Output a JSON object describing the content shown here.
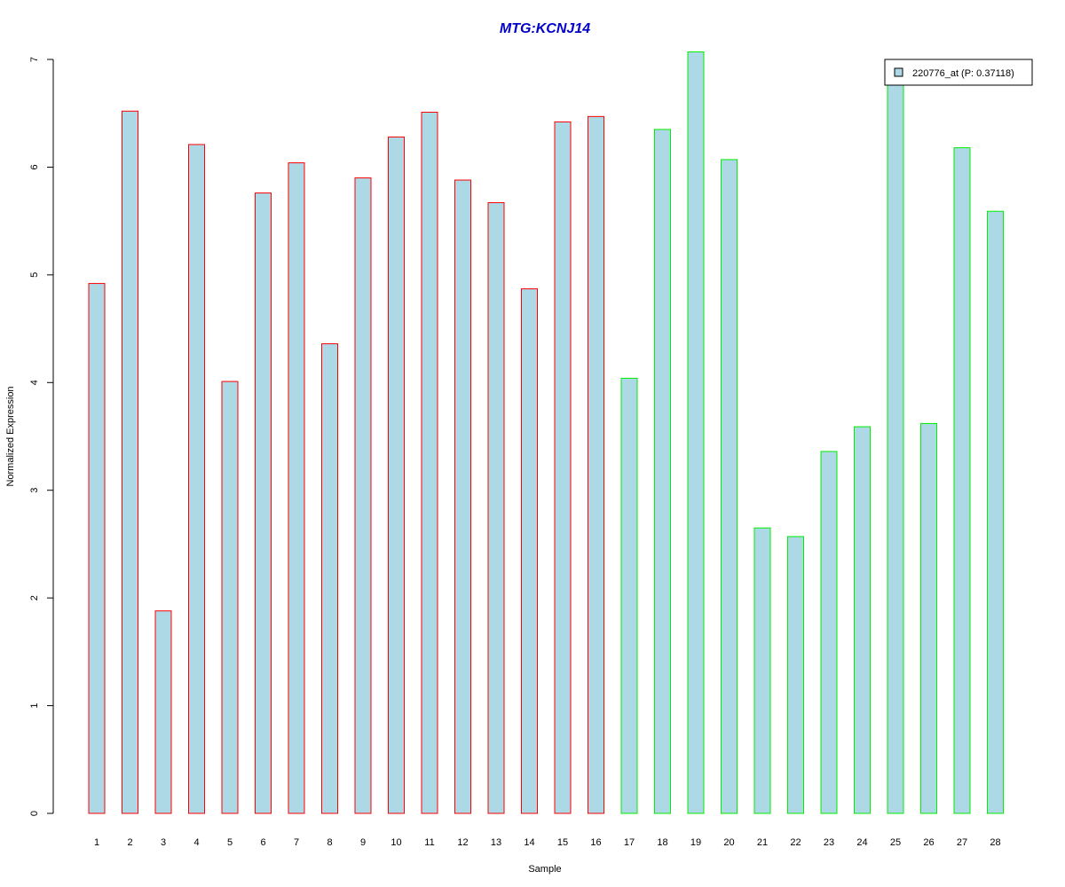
{
  "chart_data": {
    "type": "bar",
    "title": "MTG:KCNJ14",
    "xlabel": "Sample",
    "ylabel": "Normalized Expression",
    "ylim": [
      0,
      7
    ],
    "yticks": [
      0,
      1,
      2,
      3,
      4,
      5,
      6,
      7
    ],
    "categories": [
      "1",
      "2",
      "3",
      "4",
      "5",
      "6",
      "7",
      "8",
      "9",
      "10",
      "11",
      "12",
      "13",
      "14",
      "15",
      "16",
      "17",
      "18",
      "19",
      "20",
      "21",
      "22",
      "23",
      "24",
      "25",
      "26",
      "27",
      "28"
    ],
    "series": [
      {
        "name": "220776_at (P: 0.37118)",
        "values": [
          4.92,
          6.52,
          1.88,
          6.21,
          4.01,
          5.76,
          6.04,
          4.36,
          5.9,
          6.28,
          6.51,
          5.88,
          5.67,
          4.87,
          6.42,
          6.47,
          4.04,
          6.35,
          7.07,
          6.07,
          2.65,
          2.57,
          3.36,
          3.59,
          6.8,
          3.62,
          6.18,
          5.59
        ]
      }
    ],
    "bar_fill": "#add8e6",
    "group_colors": [
      "#ff0000",
      "#ff0000",
      "#ff0000",
      "#ff0000",
      "#ff0000",
      "#ff0000",
      "#ff0000",
      "#ff0000",
      "#ff0000",
      "#ff0000",
      "#ff0000",
      "#ff0000",
      "#ff0000",
      "#ff0000",
      "#ff0000",
      "#ff0000",
      "#00ee00",
      "#00ee00",
      "#00ee00",
      "#00ee00",
      "#00ee00",
      "#00ee00",
      "#00ee00",
      "#00ee00",
      "#00ee00",
      "#00ee00",
      "#00ee00",
      "#00ee00"
    ],
    "title_color": "#0000cd",
    "legend": {
      "label": "220776_at (P: 0.37118)",
      "position": "top-right"
    },
    "grid": false
  }
}
